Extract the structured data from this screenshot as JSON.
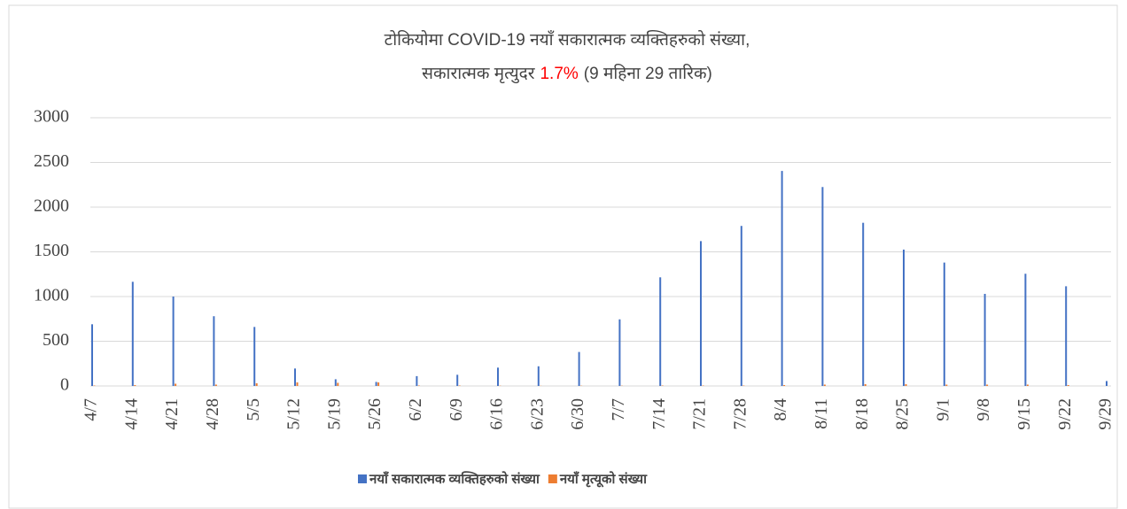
{
  "chart_data": {
    "type": "bar",
    "title": "टोकियोमा COVID-19 नयाँ सकारात्मक व्यक्तिहरुको संख्या,",
    "subtitle": [
      "सकारात्मक मृत्युदर",
      "1.7%",
      "(9 महिना 29 तारिक)"
    ],
    "highlight_color": "#ff0000",
    "categories": [
      "4/7",
      "4/14",
      "4/21",
      "4/28",
      "5/5",
      "5/12",
      "5/19",
      "5/26",
      "6/2",
      "6/9",
      "6/16",
      "6/23",
      "6/30",
      "7/7",
      "7/14",
      "7/21",
      "7/28",
      "8/4",
      "8/11",
      "8/18",
      "8/25",
      "9/1",
      "9/8",
      "9/15",
      "9/22",
      "9/29"
    ],
    "series": [
      {
        "name": "नयाँ सकारात्मक व्यक्तिहरुको संख्या",
        "color": "#4472c4",
        "values": [
          690,
          1165,
          1000,
          780,
          660,
          195,
          75,
          45,
          110,
          125,
          205,
          220,
          380,
          745,
          1215,
          1620,
          1790,
          2405,
          2225,
          1825,
          1525,
          1380,
          1030,
          1255,
          1115,
          55
        ]
      },
      {
        "name": "नयाँ मृत्यूको संख्या",
        "color": "#ed7d31",
        "values": [
          5,
          10,
          25,
          15,
          30,
          40,
          35,
          40,
          5,
          5,
          3,
          2,
          3,
          3,
          5,
          5,
          5,
          10,
          15,
          20,
          20,
          15,
          15,
          15,
          10,
          0
        ]
      }
    ],
    "ylim": [
      0,
      3000
    ],
    "yticks": [
      0,
      500,
      1000,
      1500,
      2000,
      2500,
      3000
    ],
    "grid": true,
    "legend": "bottom"
  }
}
